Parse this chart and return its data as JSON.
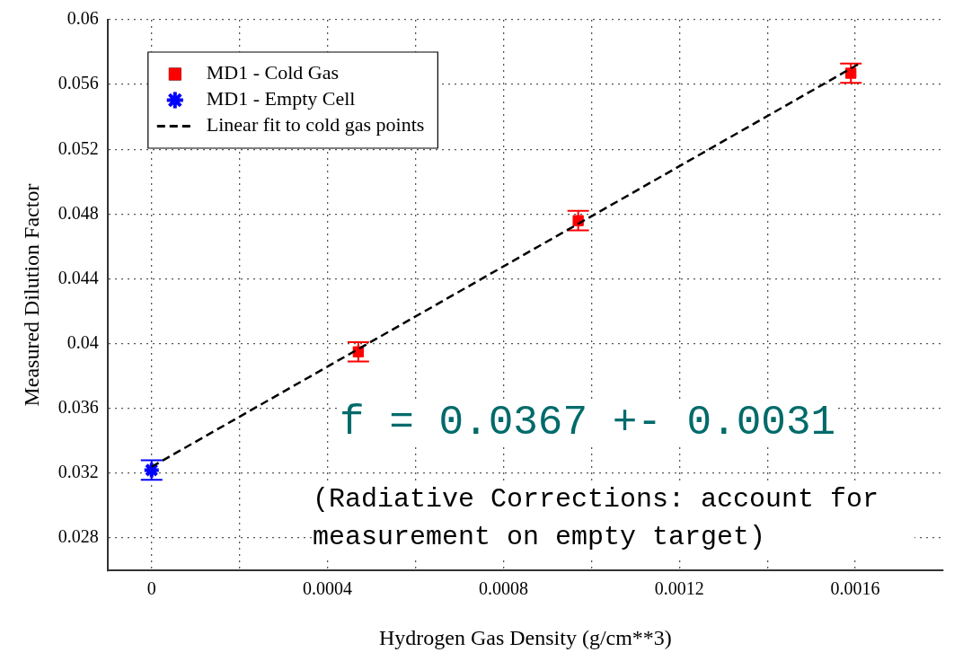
{
  "chart_data": {
    "type": "scatter",
    "xlabel": "Hydrogen Gas Density (g/cm**3)",
    "ylabel": "Measured Dilution Factor",
    "xlim": [
      -0.0001,
      0.0018
    ],
    "xticks": [
      0,
      {
        "value": 0.0002,
        "label": null
      },
      0.0004,
      {
        "value": 0.0006,
        "label": null
      },
      0.0008,
      {
        "value": 0.001,
        "label": null
      },
      0.0012,
      {
        "value": 0.0014,
        "label": null
      },
      0.0016
    ],
    "ylim": [
      0.026,
      0.06
    ],
    "yticks": [
      0.028,
      0.032,
      0.036,
      0.04,
      0.044,
      0.048,
      0.052,
      0.056,
      0.06
    ],
    "grid": true,
    "legend": "top left",
    "series": [
      {
        "name": "MD1 - Cold Gas",
        "type": "scatter",
        "marker": "square",
        "color": "#ff0000",
        "x": [
          0.00047,
          0.00097,
          0.00159
        ],
        "values": [
          0.0395,
          0.0476,
          0.0567
        ],
        "errors": [
          0.0006,
          0.0006,
          0.0006
        ]
      },
      {
        "name": "MD1 - Empty Cell",
        "type": "scatter",
        "marker": "cross",
        "color": "#0000ff",
        "x": [
          0
        ],
        "values": [
          0.0322
        ],
        "errors": [
          0.0006
        ]
      },
      {
        "name": "Linear fit to cold gas points",
        "type": "line",
        "marker": "none",
        "line_style": "dashed",
        "color": "#000000",
        "x": [
          0,
          0.00161
        ],
        "values": [
          0.0324,
          0.0573
        ]
      }
    ],
    "annotations": [
      "f = 0.0367 +- 0.0031",
      "(Radiative Corrections: account for measurement on empty target)"
    ]
  }
}
